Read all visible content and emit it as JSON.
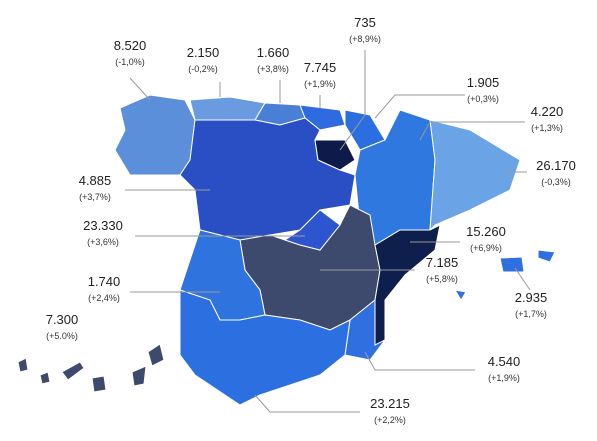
{
  "regions": [
    {
      "value": "8.520",
      "change": "(-1,0%)"
    },
    {
      "value": "2.150",
      "change": "(-0,2%)"
    },
    {
      "value": "1.660",
      "change": "(+3,8%)"
    },
    {
      "value": "7.745",
      "change": "(+1,9%)"
    },
    {
      "value": "735",
      "change": "(+8,9%)"
    },
    {
      "value": "1.905",
      "change": "(+0,3%)"
    },
    {
      "value": "4.220",
      "change": "(+1,3%)"
    },
    {
      "value": "26.170",
      "change": "(-0,3%)"
    },
    {
      "value": "4.885",
      "change": "(+3,7%)"
    },
    {
      "value": "23.330",
      "change": "(+3,6%)"
    },
    {
      "value": "15.260",
      "change": "(+6,9%)"
    },
    {
      "value": "7.185",
      "change": "(+5,8%)"
    },
    {
      "value": "1.740",
      "change": "(+2,4%)"
    },
    {
      "value": "2.935",
      "change": "(+1,7%)"
    },
    {
      "value": "7.300",
      "change": "(+5.0%)"
    },
    {
      "value": "4.540",
      "change": "(+1,9%)"
    },
    {
      "value": "23.215",
      "change": "(+2,2%)"
    }
  ]
}
